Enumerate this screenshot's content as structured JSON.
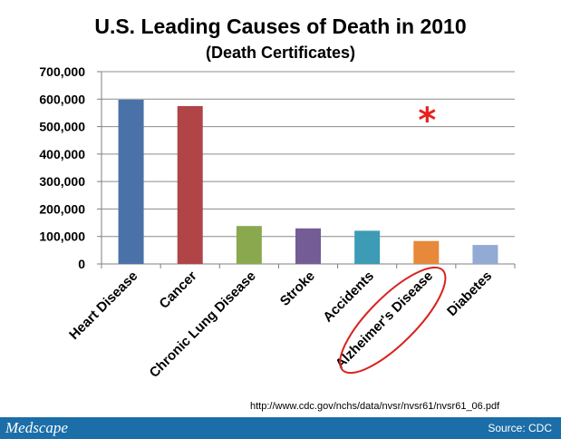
{
  "chart_data": {
    "type": "bar",
    "title": "U.S. Leading Causes of Death in 2010",
    "subtitle": "(Death Certificates)",
    "categories": [
      "Heart Disease",
      "Cancer",
      "Chronic Lung Disease",
      "Stroke",
      "Accidents",
      "Alzheimer's Disease",
      "Diabetes"
    ],
    "values": [
      597689,
      574743,
      138080,
      129476,
      120859,
      83494,
      69071
    ],
    "colors": [
      "#4a72a8",
      "#b04446",
      "#8aa94f",
      "#745c95",
      "#3d9bb5",
      "#e6893a",
      "#93aad4"
    ],
    "yticks": [
      "0",
      "100,000",
      "200,000",
      "300,000",
      "400,000",
      "500,000",
      "600,000",
      "700,000"
    ],
    "ylim": [
      0,
      700000
    ],
    "xlabel": "",
    "ylabel": "",
    "grid": true,
    "highlight": {
      "category": "Alzheimer's Disease",
      "marker": "*",
      "marker_color": "#e8201c",
      "ellipse_color": "#d8231f"
    }
  },
  "source_url": "http://www.cdc.gov/nchs/data/nvsr/nvsr61/nvsr61_06.pdf",
  "footer": {
    "brand": "Medscape",
    "source": "Source: CDC",
    "color": "#1b6ea8"
  }
}
